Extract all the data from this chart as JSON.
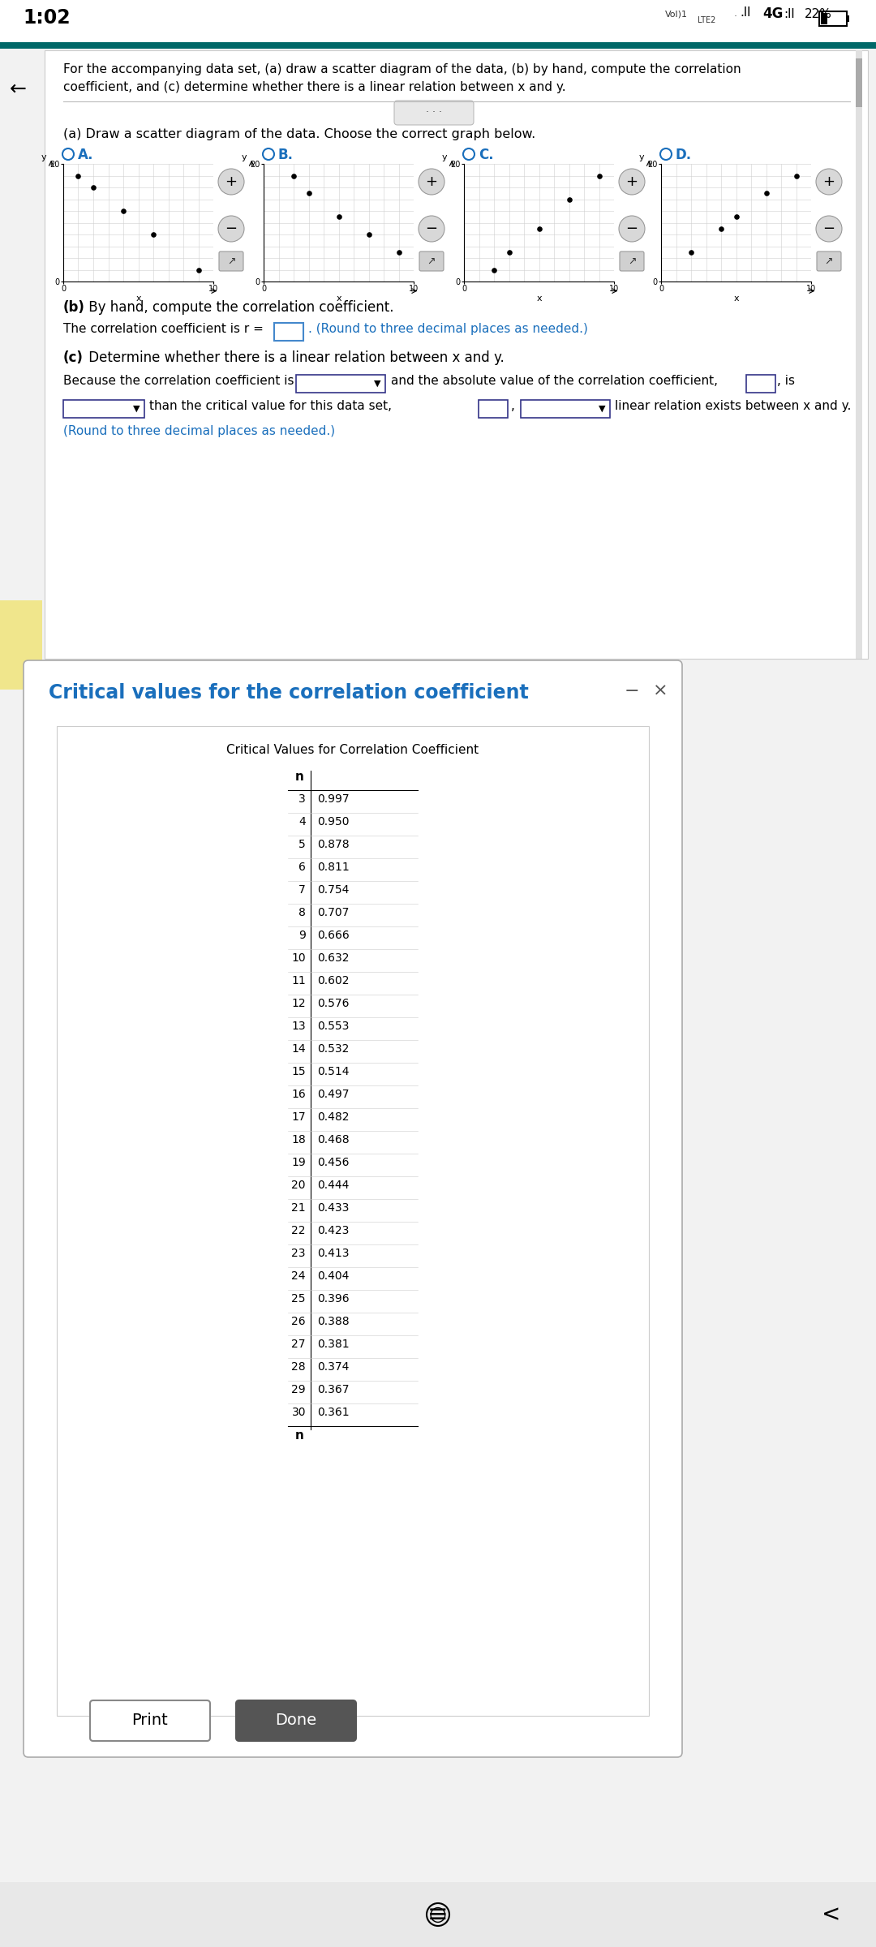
{
  "status_bar_time": "1:02",
  "teal_bar_color": "#006868",
  "bg_color": "#f2f2f2",
  "panel_bg": "#ffffff",
  "main_text_line1": "For the accompanying data set, (a) draw a scatter diagram of the data, (b) by hand, compute the correlation",
  "main_text_line2": "coefficient, and (c) determine whether there is a linear relation between x and y.",
  "part_a_text": "(a) Draw a scatter diagram of the data. Choose the correct graph below.",
  "graph_labels": [
    "A.",
    "B.",
    "C.",
    "D."
  ],
  "graph_label_color": "#1a6fbc",
  "radio_color": "#1a6fbc",
  "scatter_A": {
    "x": [
      1,
      2,
      4,
      6,
      9
    ],
    "y": [
      18,
      16,
      12,
      8,
      2
    ]
  },
  "scatter_B": {
    "x": [
      2,
      3,
      5,
      7,
      9
    ],
    "y": [
      18,
      15,
      11,
      8,
      5
    ]
  },
  "scatter_C": {
    "x": [
      2,
      3,
      5,
      7,
      9
    ],
    "y": [
      2,
      5,
      9,
      14,
      18
    ]
  },
  "scatter_D": {
    "x": [
      2,
      4,
      5,
      7,
      9
    ],
    "y": [
      5,
      9,
      11,
      15,
      18
    ]
  },
  "part_b_bold": "(b)",
  "part_b_rest": " By hand, compute the correlation coefficient.",
  "corr_text": "The correlation coefficient is r =",
  "corr_blue": ". (Round to three decimal places as needed.)",
  "part_c_bold": "(c)",
  "part_c_rest": " Determine whether there is a linear relation between x and y.",
  "because_text1": "Because the correlation coefficient is",
  "because_text2": "and the absolute value of the correlation coefficient,",
  "because_text3": ", is",
  "because_text4": "than the critical value for this data set,",
  "because_text5": ",",
  "because_text6": "linear relation exists between x and y.",
  "round_note": "(Round to three decimal places as needed.)",
  "yellow_color": "#f0e68c",
  "dialog_title": "Critical values for the correlation coefficient",
  "dialog_title_color": "#1a6fbc",
  "table_title": "Critical Values for Correlation Coefficient",
  "table_n": [
    3,
    4,
    5,
    6,
    7,
    8,
    9,
    10,
    11,
    12,
    13,
    14,
    15,
    16,
    17,
    18,
    19,
    20,
    21,
    22,
    23,
    24,
    25,
    26,
    27,
    28,
    29,
    30
  ],
  "table_cv": [
    0.997,
    0.95,
    0.878,
    0.811,
    0.754,
    0.707,
    0.666,
    0.632,
    0.602,
    0.576,
    0.553,
    0.532,
    0.514,
    0.497,
    0.482,
    0.468,
    0.456,
    0.444,
    0.433,
    0.423,
    0.413,
    0.404,
    0.396,
    0.388,
    0.381,
    0.374,
    0.367,
    0.361
  ],
  "print_btn": "Print",
  "done_btn": "Done",
  "nav_color": "#e8e8e8"
}
